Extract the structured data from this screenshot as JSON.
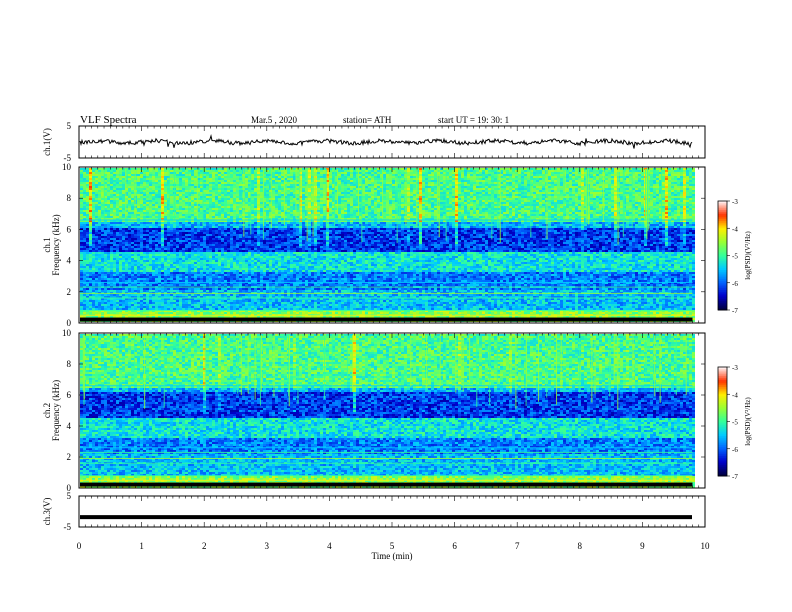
{
  "header": {
    "title": "VLF  Spectra",
    "date": "Mar.5  , 2020",
    "station": "station= ATH",
    "start": "start  UT  =    19: 30: 1"
  },
  "colors": {
    "frame": "#000000",
    "background": "#ffffff",
    "colormap": [
      "#000044",
      "#0000cc",
      "#0066ff",
      "#00ccff",
      "#33ff99",
      "#99ff33",
      "#ffee00",
      "#ff3300",
      "#ffeeee"
    ]
  },
  "chart_data": [
    {
      "type": "line",
      "panel": "ch1-waveform",
      "ylabel": "ch.1(V)",
      "yticks": [
        "5",
        "-5"
      ],
      "ylim": [
        -5,
        5
      ],
      "xlim": [
        0,
        10
      ],
      "baseline": 0,
      "duration_min": 9.8
    },
    {
      "type": "heatmap",
      "panel": "ch1-spectrogram",
      "ylabel_line1": "ch.1",
      "ylabel_line2": "Frequency  (kHz)",
      "yticks": [
        "0",
        "2",
        "4",
        "6",
        "8",
        "10"
      ],
      "ylim": [
        0,
        10
      ],
      "xlim": [
        0,
        10
      ],
      "duration_min": 9.8,
      "colorbar": {
        "label": "log(PSD)(V²/Hz)",
        "ticks": [
          "-3",
          "-4",
          "-5",
          "-6",
          "-7"
        ],
        "range": [
          -7,
          -3
        ]
      }
    },
    {
      "type": "heatmap",
      "panel": "ch2-spectrogram",
      "ylabel_line1": "ch.2",
      "ylabel_line2": "Frequency  (kHz)",
      "yticks": [
        "0",
        "2",
        "4",
        "6",
        "8",
        "10"
      ],
      "ylim": [
        0,
        10
      ],
      "xlim": [
        0,
        10
      ],
      "duration_min": 9.8,
      "colorbar": {
        "label": "log(PSD)(V²/Hz)",
        "ticks": [
          "-3",
          "-4",
          "-5",
          "-6",
          "-7"
        ],
        "range": [
          -7,
          -3
        ]
      }
    },
    {
      "type": "line",
      "panel": "ch3-waveform",
      "ylabel": "ch.3(V)",
      "yticks": [
        "5",
        "-5"
      ],
      "ylim": [
        -5,
        5
      ],
      "xlim": [
        0,
        10
      ],
      "baseline": -1.8,
      "duration_min": 9.8
    }
  ],
  "xaxis": {
    "label": "Time  (min)",
    "ticks": [
      "0",
      "1",
      "2",
      "3",
      "4",
      "5",
      "6",
      "7",
      "8",
      "9",
      "10"
    ]
  }
}
